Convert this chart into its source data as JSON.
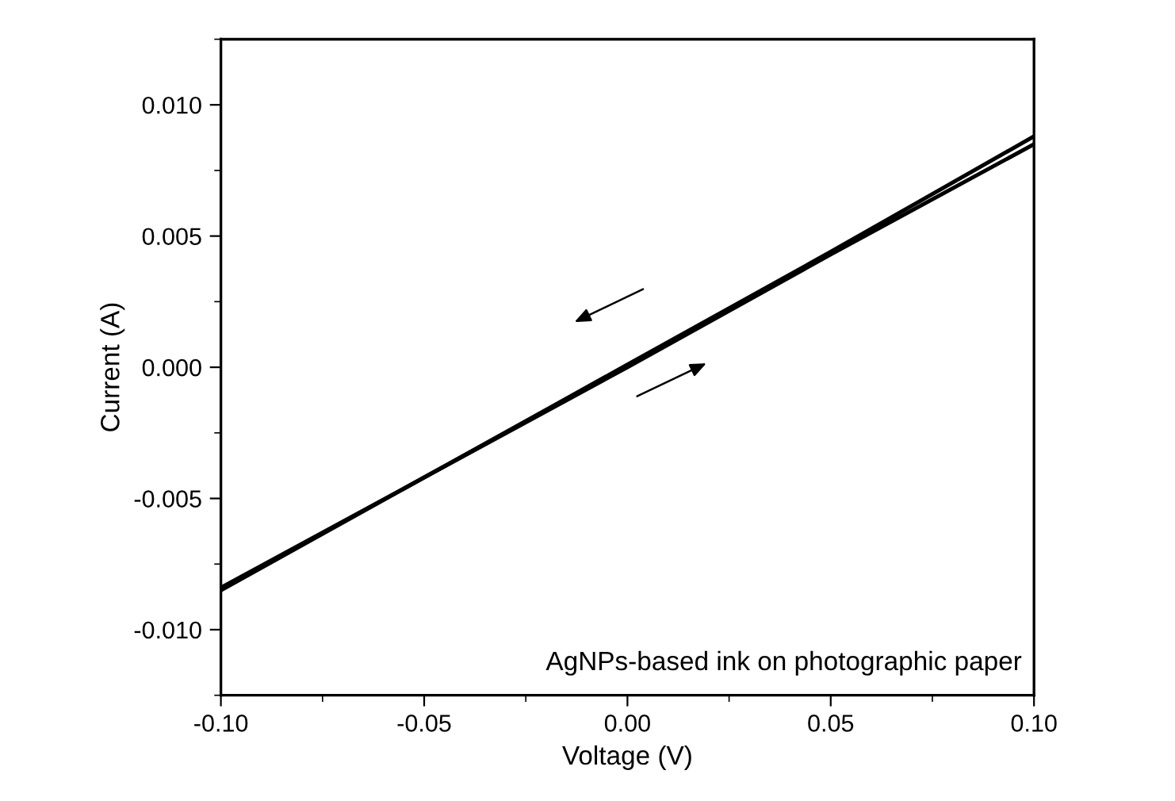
{
  "chart_data": {
    "type": "line",
    "xlabel": "Voltage (V)",
    "ylabel": "Current (A)",
    "annotations": [
      "AgNPs-based ink on photographic paper"
    ],
    "series": [
      {
        "color": "#000000",
        "x": [
          -0.1,
          -0.05,
          0.0,
          0.05,
          0.1
        ],
        "values": [
          -0.0085,
          -0.0042,
          0.0,
          0.0043,
          0.0085
        ]
      },
      {
        "color": "#000000",
        "x": [
          0.1,
          0.05,
          0.0,
          -0.05,
          -0.1
        ],
        "values": [
          0.0088,
          0.0044,
          0.0001,
          -0.0042,
          -0.0084
        ]
      }
    ],
    "xlim": [
      -0.1,
      0.1
    ],
    "ylim": [
      -0.0125,
      0.0125
    ],
    "xticks": [
      {
        "value": -0.1,
        "label": "-0.10"
      },
      {
        "value": -0.05,
        "label": "-0.05"
      },
      {
        "value": 0.0,
        "label": "0.00"
      },
      {
        "value": 0.05,
        "label": "0.05"
      },
      {
        "value": 0.1,
        "label": "0.10"
      }
    ],
    "yticks": [
      {
        "value": -0.01,
        "label": "-0.010"
      },
      {
        "value": -0.005,
        "label": "-0.005"
      },
      {
        "value": 0.0,
        "label": "0.000"
      },
      {
        "value": 0.005,
        "label": "0.005"
      },
      {
        "value": 0.01,
        "label": "0.010"
      }
    ],
    "grid": false,
    "legend": false,
    "marker": "none",
    "line_style": "solid"
  }
}
